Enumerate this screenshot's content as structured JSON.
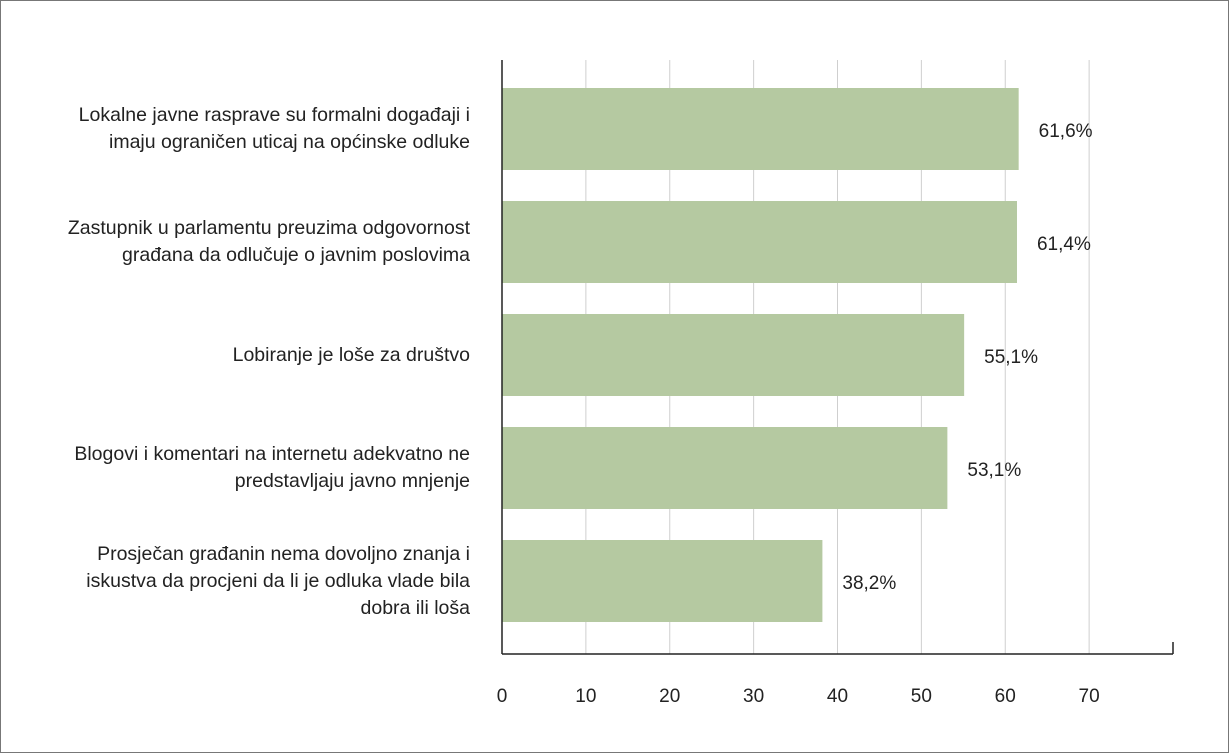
{
  "chart_data": {
    "type": "bar",
    "orientation": "horizontal",
    "categories": [
      "Lokalne javne rasprave su formalni događaji i imaju ograničen uticaj na općinske odluke",
      "Zastupnik u parlamentu preuzima odgovornost građana da odlučuje o javnim poslovima",
      "Lobiranje je loše za društvo",
      "Blogovi i komentari na internetu adekvatno ne predstavljaju javno mnjenje",
      "Prosječan građanin nema dovoljno znanja i iskustva da procjeni da li je odluka vlade bila dobra ili loša"
    ],
    "values": [
      61.6,
      61.4,
      55.1,
      53.1,
      38.2
    ],
    "value_labels": [
      "61,6%",
      "61,4%",
      "55,1%",
      "53,1%",
      "38,2%"
    ],
    "color": "#b5c9a1",
    "xlim": [
      0,
      80
    ],
    "xticks": [
      0,
      10,
      20,
      30,
      40,
      50,
      60,
      70
    ],
    "grid": true
  }
}
